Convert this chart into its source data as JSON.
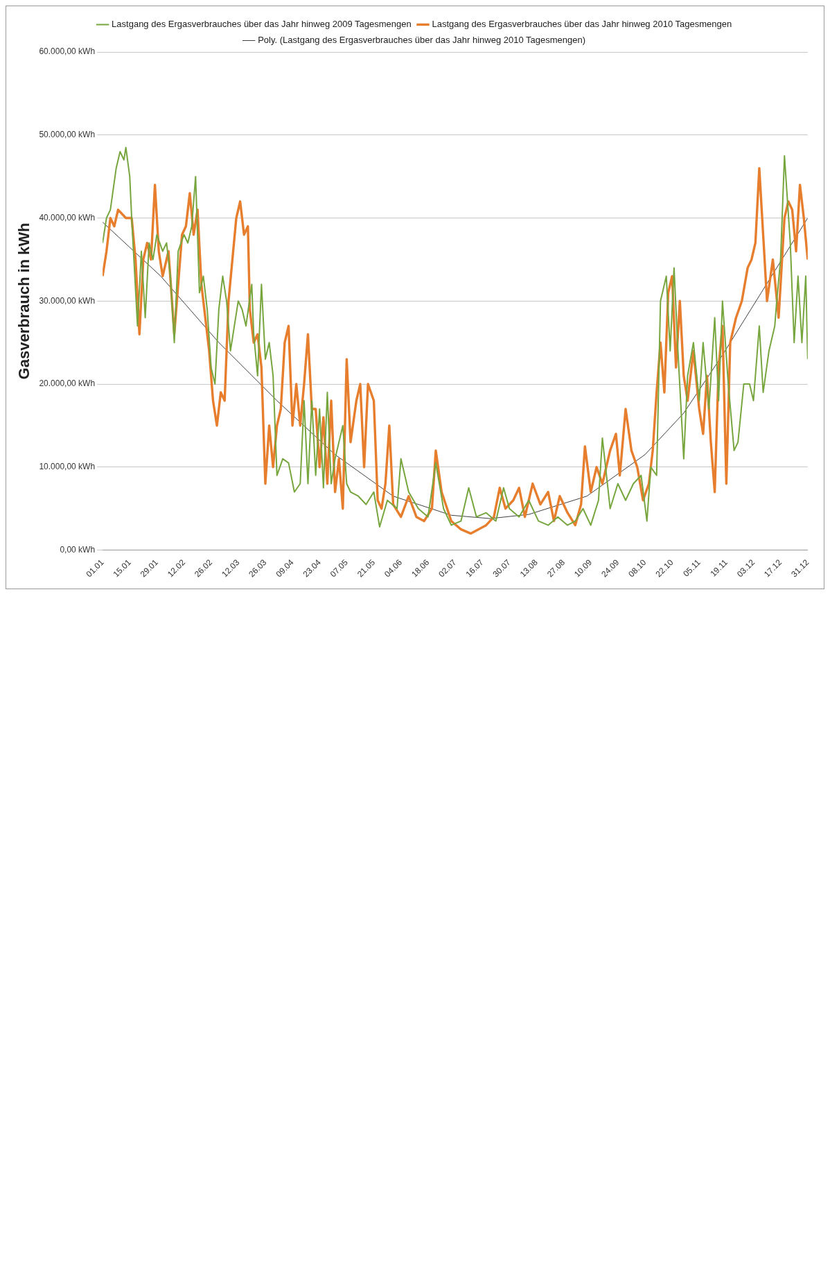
{
  "chart_data": {
    "type": "line",
    "ylabel": "Gasverbrauch in kWh",
    "legend": "top",
    "grid": "y",
    "marker": "none",
    "line_style": "solid",
    "xlim": [
      "--01-01",
      "--12-31"
    ],
    "xticks": [
      {
        "value": "--01-01",
        "label": "01.01"
      },
      {
        "value": "--01-15",
        "label": "15.01"
      },
      {
        "value": "--01-29",
        "label": "29.01"
      },
      {
        "value": "--02-12",
        "label": "12.02"
      },
      {
        "value": "--02-26",
        "label": "26.02"
      },
      {
        "value": "--03-12",
        "label": "12.03"
      },
      {
        "value": "--03-26",
        "label": "26.03"
      },
      {
        "value": "--04-09",
        "label": "09.04"
      },
      {
        "value": "--04-23",
        "label": "23.04"
      },
      {
        "value": "--05-07",
        "label": "07.05"
      },
      {
        "value": "--05-21",
        "label": "21.05"
      },
      {
        "value": "--06-04",
        "label": "04.06"
      },
      {
        "value": "--06-18",
        "label": "18.06"
      },
      {
        "value": "--07-02",
        "label": "02.07"
      },
      {
        "value": "--07-16",
        "label": "16.07"
      },
      {
        "value": "--07-30",
        "label": "30.07"
      },
      {
        "value": "--08-13",
        "label": "13.08"
      },
      {
        "value": "--08-27",
        "label": "27.08"
      },
      {
        "value": "--09-10",
        "label": "10.09"
      },
      {
        "value": "--09-24",
        "label": "24.09"
      },
      {
        "value": "--10-08",
        "label": "08.10"
      },
      {
        "value": "--10-22",
        "label": "22.10"
      },
      {
        "value": "--11-05",
        "label": "05.11"
      },
      {
        "value": "--11-19",
        "label": "19.11"
      },
      {
        "value": "--12-03",
        "label": "03.12"
      },
      {
        "value": "--12-17",
        "label": "17.12"
      },
      {
        "value": "--12-31",
        "label": "31.12"
      }
    ],
    "ylim": [
      0,
      60000
    ],
    "yticks": [
      {
        "value": 0,
        "label": "0,00 kWh"
      },
      {
        "value": 10000,
        "label": "10.000,00 kWh"
      },
      {
        "value": 20000,
        "label": "20.000,00 kWh"
      },
      {
        "value": 30000,
        "label": "30.000,00 kWh"
      },
      {
        "value": 40000,
        "label": "40.000,00 kWh"
      },
      {
        "value": 50000,
        "label": "50.000,00 kWh"
      },
      {
        "value": 60000,
        "label": "60.000,00 kWh"
      }
    ],
    "series": [
      {
        "name": "Lastgang des Ergasverbrauches über das Jahr hinweg 2009 Tagesmengen",
        "color": "#77a63f",
        "x": [
          "--01-01",
          "--01-03",
          "--01-05",
          "--01-08",
          "--01-10",
          "--01-12",
          "--01-13",
          "--01-15",
          "--01-16",
          "--01-19",
          "--01-21",
          "--01-23",
          "--01-25",
          "--01-27",
          "--01-29",
          "--02-01",
          "--02-03",
          "--02-05",
          "--02-07",
          "--02-09",
          "--02-12",
          "--02-14",
          "--02-16",
          "--02-18",
          "--02-20",
          "--02-22",
          "--02-24",
          "--02-26",
          "--02-28",
          "--03-02",
          "--03-04",
          "--03-06",
          "--03-08",
          "--03-12",
          "--03-14",
          "--03-16",
          "--03-19",
          "--03-20",
          "--03-22",
          "--03-24",
          "--03-26",
          "--03-28",
          "--03-30",
          "--04-01",
          "--04-04",
          "--04-07",
          "--04-10",
          "--04-13",
          "--04-15",
          "--04-17",
          "--04-19",
          "--04-21",
          "--04-23",
          "--04-25",
          "--04-27",
          "--04-29",
          "--05-01",
          "--05-05",
          "--05-07",
          "--05-09",
          "--05-13",
          "--05-17",
          "--05-21",
          "--05-24",
          "--05-28",
          "--06-02",
          "--06-04",
          "--06-08",
          "--06-13",
          "--06-18",
          "--06-22",
          "--06-26",
          "--06-30",
          "--07-05",
          "--07-09",
          "--07-13",
          "--07-18",
          "--07-23",
          "--07-27",
          "--07-30",
          "--08-04",
          "--08-09",
          "--08-14",
          "--08-19",
          "--08-24",
          "--08-29",
          "--09-02",
          "--09-06",
          "--09-10",
          "--09-14",
          "--09-16",
          "--09-20",
          "--09-24",
          "--09-28",
          "--10-02",
          "--10-06",
          "--10-09",
          "--10-11",
          "--10-14",
          "--10-16",
          "--10-19",
          "--10-21",
          "--10-23",
          "--10-25",
          "--10-28",
          "--10-30",
          "--11-02",
          "--11-05",
          "--11-07",
          "--11-10",
          "--11-13",
          "--11-15",
          "--11-17",
          "--11-20",
          "--11-23",
          "--11-25",
          "--11-28",
          "--12-01",
          "--12-03",
          "--12-06",
          "--12-08",
          "--12-11",
          "--12-14",
          "--12-15",
          "--12-17",
          "--12-19",
          "--12-22",
          "--12-24",
          "--12-26",
          "--12-28",
          "--12-30",
          "--12-31"
        ],
        "values": [
          37000,
          40000,
          41000,
          46000,
          48000,
          47000,
          48500,
          45000,
          40000,
          27000,
          36000,
          28000,
          37000,
          35000,
          38000,
          36000,
          37000,
          33000,
          25000,
          36000,
          38000,
          37000,
          39000,
          45000,
          31000,
          33000,
          29000,
          22000,
          20000,
          29000,
          33000,
          30000,
          24000,
          30000,
          29000,
          27000,
          32000,
          26000,
          21000,
          32000,
          23000,
          25000,
          21000,
          9000,
          11000,
          10500,
          7000,
          8000,
          18000,
          8000,
          18000,
          9000,
          17000,
          7500,
          19000,
          8000,
          11000,
          15000,
          8000,
          7000,
          6500,
          5500,
          7000,
          2800,
          6000,
          5000,
          11000,
          7000,
          5000,
          4000,
          10500,
          5000,
          3000,
          3500,
          7500,
          4000,
          4500,
          3500,
          7500,
          5000,
          4000,
          6000,
          3500,
          3000,
          4000,
          3000,
          3500,
          5000,
          3000,
          6000,
          13500,
          5000,
          8000,
          6000,
          8000,
          9000,
          3500,
          10000,
          9000,
          30000,
          33000,
          24000,
          34000,
          24000,
          11000,
          21000,
          25000,
          18000,
          25000,
          17000,
          28000,
          18000,
          30000,
          20000,
          12000,
          13000,
          20000,
          20000,
          18000,
          27000,
          19000,
          24000,
          27000,
          30000,
          35000,
          47500,
          37000,
          25000,
          33000,
          25000,
          33000,
          23000
        ]
      },
      {
        "name": "Lastgang des Ergasverbrauches über das Jahr hinweg 2010 Tagesmengen",
        "color": "#e67e2e",
        "x": [
          "--01-01",
          "--01-03",
          "--01-05",
          "--01-07",
          "--01-09",
          "--01-13",
          "--01-16",
          "--01-18",
          "--01-20",
          "--01-22",
          "--01-24",
          "--01-26",
          "--01-28",
          "--01-30",
          "--02-01",
          "--02-04",
          "--02-07",
          "--02-09",
          "--02-11",
          "--02-13",
          "--02-15",
          "--02-17",
          "--02-19",
          "--02-21",
          "--02-23",
          "--02-25",
          "--02-27",
          "--03-01",
          "--03-03",
          "--03-05",
          "--03-07",
          "--03-09",
          "--03-11",
          "--03-13",
          "--03-15",
          "--03-17",
          "--03-18",
          "--03-20",
          "--03-22",
          "--03-24",
          "--03-26",
          "--03-28",
          "--03-30",
          "--04-01",
          "--04-03",
          "--04-05",
          "--04-07",
          "--04-09",
          "--04-11",
          "--04-13",
          "--04-15",
          "--04-17",
          "--04-19",
          "--04-21",
          "--04-23",
          "--04-25",
          "--04-27",
          "--04-29",
          "--05-01",
          "--05-03",
          "--05-05",
          "--05-07",
          "--05-09",
          "--05-12",
          "--05-14",
          "--05-16",
          "--05-18",
          "--05-21",
          "--05-23",
          "--05-25",
          "--05-27",
          "--05-29",
          "--05-31",
          "--06-04",
          "--06-08",
          "--06-12",
          "--06-16",
          "--06-20",
          "--06-22",
          "--06-25",
          "--06-30",
          "--07-05",
          "--07-10",
          "--07-14",
          "--07-18",
          "--07-22",
          "--07-25",
          "--07-28",
          "--08-01",
          "--08-04",
          "--08-07",
          "--08-11",
          "--08-15",
          "--08-19",
          "--08-22",
          "--08-25",
          "--08-29",
          "--09-02",
          "--09-05",
          "--09-07",
          "--09-10",
          "--09-13",
          "--09-16",
          "--09-20",
          "--09-23",
          "--09-25",
          "--09-28",
          "--10-01",
          "--10-04",
          "--10-07",
          "--10-10",
          "--10-12",
          "--10-14",
          "--10-16",
          "--10-18",
          "--10-20",
          "--10-22",
          "--10-24",
          "--10-26",
          "--10-28",
          "--10-30",
          "--11-02",
          "--11-05",
          "--11-07",
          "--11-09",
          "--11-11",
          "--11-13",
          "--11-15",
          "--11-17",
          "--11-19",
          "--11-21",
          "--11-24",
          "--11-27",
          "--11-30",
          "--12-02",
          "--12-04",
          "--12-06",
          "--12-08",
          "--12-10",
          "--12-13",
          "--12-16",
          "--12-19",
          "--12-21",
          "--12-23",
          "--12-25",
          "--12-27",
          "--12-29",
          "--12-31"
        ],
        "values": [
          33000,
          36000,
          40000,
          39000,
          41000,
          40000,
          40000,
          35000,
          26000,
          35000,
          37000,
          35000,
          44000,
          36000,
          33000,
          36000,
          26000,
          32000,
          38000,
          39000,
          43000,
          38000,
          41000,
          32000,
          28000,
          24000,
          18000,
          15000,
          19000,
          18000,
          30000,
          35000,
          40000,
          42000,
          38000,
          39000,
          29000,
          25000,
          26000,
          22000,
          8000,
          15000,
          10000,
          15000,
          17000,
          25000,
          27000,
          15000,
          20000,
          15000,
          20000,
          26000,
          17000,
          17000,
          10000,
          16000,
          8000,
          18000,
          7000,
          11000,
          5000,
          23000,
          13000,
          18000,
          20000,
          10000,
          20000,
          18000,
          6000,
          5000,
          8000,
          15000,
          5500,
          4000,
          6500,
          4000,
          3500,
          5000,
          12000,
          7000,
          3500,
          2500,
          2000,
          2500,
          3000,
          4000,
          7500,
          5000,
          6000,
          7500,
          4000,
          8000,
          5500,
          7000,
          3500,
          6500,
          4500,
          3000,
          5500,
          12500,
          7000,
          10000,
          8000,
          12000,
          14000,
          9000,
          17000,
          12000,
          10000,
          6000,
          8000,
          12000,
          19000,
          25000,
          19000,
          31000,
          33000,
          22000,
          30000,
          21000,
          18000,
          24000,
          17000,
          14000,
          21000,
          13000,
          7000,
          22000,
          27000,
          8000,
          25000,
          28000,
          30000,
          34000,
          35000,
          37000,
          46000,
          38000,
          30000,
          35000,
          28000,
          40000,
          42000,
          41000,
          36000,
          44000,
          40000,
          35000
        ]
      },
      {
        "name": "Poly. (Lastgang des Ergasverbrauches über das Jahr hinweg 2010 Tagesmengen)",
        "color": "#404040",
        "x": [
          "--01-01",
          "--01-31",
          "--03-02",
          "--04-01",
          "--05-01",
          "--05-31",
          "--06-30",
          "--07-20",
          "--08-09",
          "--09-08",
          "--10-08",
          "--10-28",
          "--11-17",
          "--12-07",
          "--12-31"
        ],
        "values": [
          39500,
          33000,
          25000,
          18000,
          11500,
          6500,
          4200,
          3800,
          4300,
          6500,
          11500,
          16500,
          23500,
          31000,
          40000
        ]
      }
    ]
  }
}
